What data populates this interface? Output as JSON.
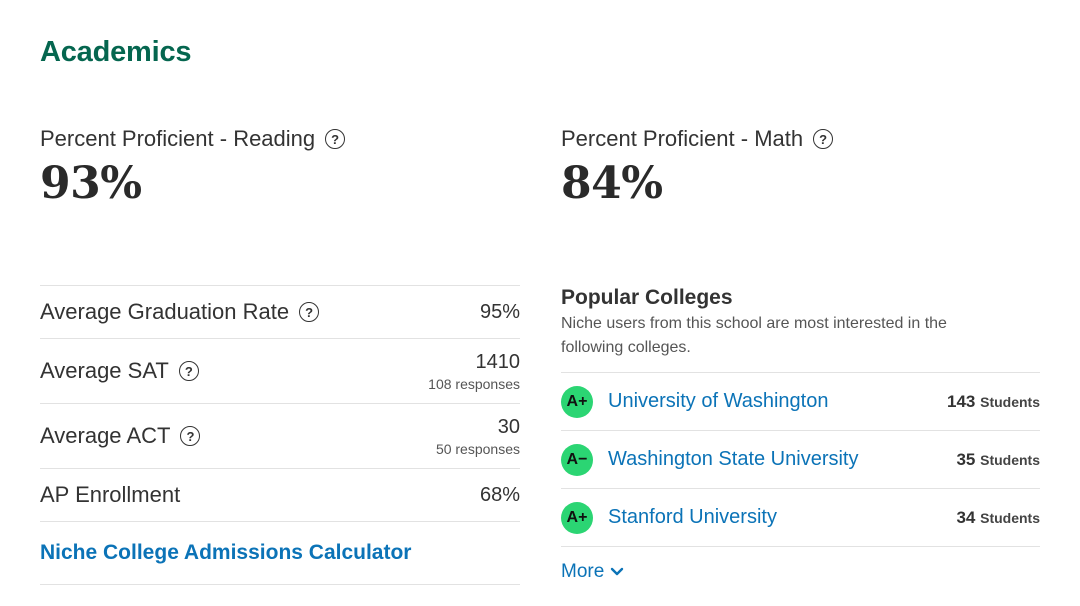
{
  "section": {
    "title": "Academics"
  },
  "proficiency": [
    {
      "label": "Percent Proficient - Reading",
      "value": "93%"
    },
    {
      "label": "Percent Proficient - Math",
      "value": "84%"
    }
  ],
  "stats": {
    "graduation": {
      "label": "Average Graduation Rate",
      "value": "95%"
    },
    "sat": {
      "label": "Average SAT",
      "value": "1410",
      "responses": "108 responses"
    },
    "act": {
      "label": "Average ACT",
      "value": "30",
      "responses": "50 responses"
    },
    "ap": {
      "label": "AP Enrollment",
      "value": "68%"
    },
    "calculator_link": "Niche College Admissions Calculator"
  },
  "popular_colleges": {
    "title": "Popular Colleges",
    "description": "Niche users from this school are most interested in the following colleges.",
    "items": [
      {
        "grade": "A+",
        "name": "University of Washington",
        "count": "143",
        "unit": "Students"
      },
      {
        "grade": "A−",
        "name": "Washington State University",
        "count": "35",
        "unit": "Students"
      },
      {
        "grade": "A+",
        "name": "Stanford University",
        "count": "34",
        "unit": "Students"
      }
    ],
    "more_label": "More"
  },
  "icons": {
    "help": "?",
    "more": "chevron-down-icon"
  },
  "colors": {
    "accent_green": "#05664f",
    "link_blue": "#0b73b7",
    "grade_green": "#2bd573"
  }
}
